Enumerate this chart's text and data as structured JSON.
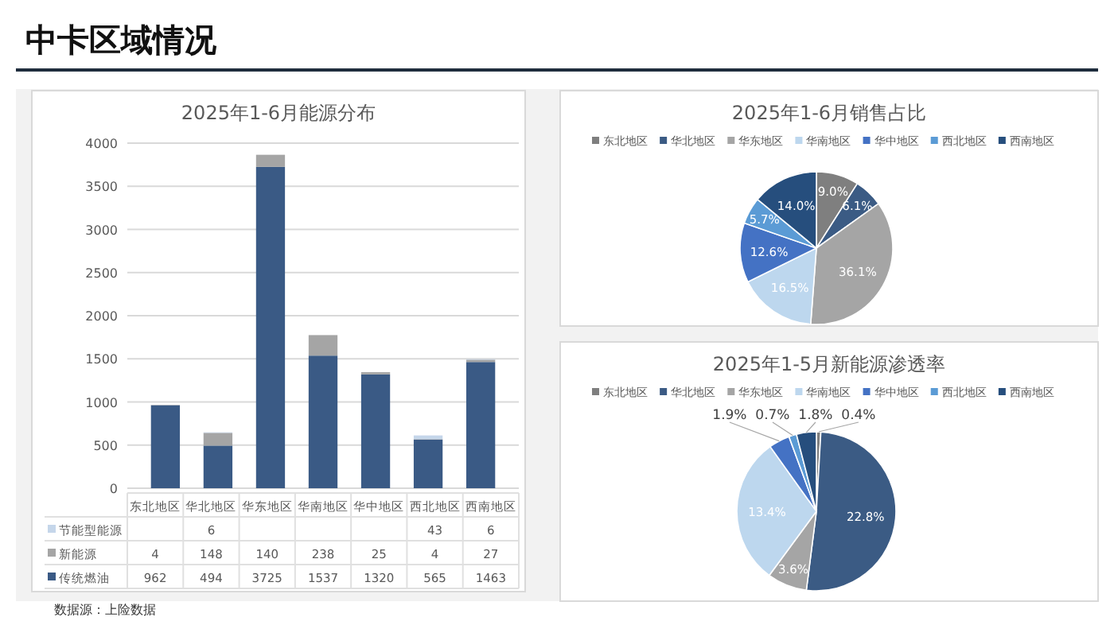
{
  "chart_data": [
    {
      "type": "bar",
      "title": "2025年1-6月能源分布",
      "stacked": true,
      "grid": "y",
      "legend": "bottom",
      "data_labels": true,
      "categories": [
        "东北地区",
        "华北地区",
        "华东地区",
        "华南地区",
        "华中地区",
        "西北地区",
        "西南地区"
      ],
      "ylim": [
        0,
        4000
      ],
      "yticks": [
        0,
        500,
        1000,
        1500,
        2000,
        2500,
        3000,
        3500,
        4000
      ],
      "series": [
        {
          "name": "传统燃油",
          "color": "#3a5a85",
          "values": [
            962,
            494,
            3725,
            1537,
            1320,
            565,
            1463
          ]
        },
        {
          "name": "新能源",
          "color": "#a5a5a5",
          "values": [
            4,
            148,
            140,
            238,
            25,
            4,
            27
          ]
        },
        {
          "name": "节能型能源",
          "color": "#c5d6ea",
          "values": [
            null,
            6,
            null,
            null,
            null,
            43,
            6
          ]
        }
      ],
      "annotations": [
        "中卡区域情况",
        "数据源：上险数据"
      ]
    },
    {
      "type": "pie",
      "title": "2025年1-6月销售占比",
      "legend": "top",
      "data_labels": true,
      "categories": [
        "东北地区",
        "华北地区",
        "华东地区",
        "华南地区",
        "华中地区",
        "西北地区",
        "西南地区"
      ],
      "values": [
        9.0,
        6.1,
        36.1,
        16.5,
        12.6,
        5.7,
        14.0
      ],
      "value_labels": [
        "9.0%",
        "6.1%",
        "36.1%",
        "16.5%",
        "12.6%",
        "5.7%",
        "14.0%"
      ],
      "colors": [
        "#7f7f7f",
        "#3b5b84",
        "#a5a5a5",
        "#bdd7ee",
        "#4472c4",
        "#5b9bd5",
        "#264e7d"
      ]
    },
    {
      "type": "pie",
      "title": "2025年1-5月新能源渗透率",
      "legend": "top",
      "data_labels": true,
      "categories": [
        "东北地区",
        "华北地区",
        "华东地区",
        "华南地区",
        "华中地区",
        "西北地区",
        "西南地区"
      ],
      "values": [
        0.4,
        22.8,
        3.6,
        13.4,
        1.9,
        0.7,
        1.8
      ],
      "value_labels": [
        "0.4%",
        "22.8%",
        "3.6%",
        "13.4%",
        "1.9%",
        "0.7%",
        "1.8%"
      ],
      "colors": [
        "#7f7f7f",
        "#3b5b84",
        "#a5a5a5",
        "#bdd7ee",
        "#4472c4",
        "#5b9bd5",
        "#264e7d"
      ]
    }
  ]
}
